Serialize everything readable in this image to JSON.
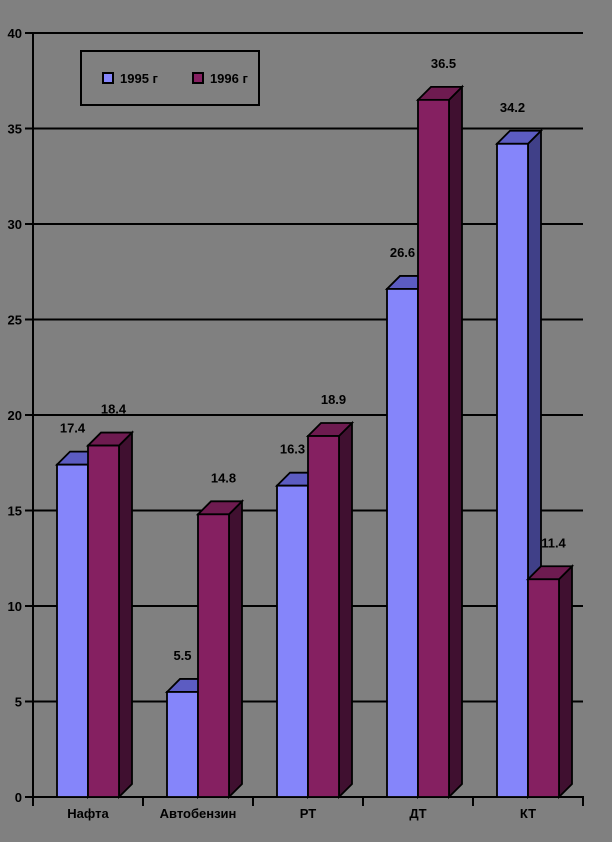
{
  "chart_data": {
    "type": "bar",
    "categories": [
      "Нафта",
      "Автобензин",
      "РТ",
      "ДТ",
      "КТ"
    ],
    "series": [
      {
        "name": "1995 г",
        "values": [
          17.4,
          5.5,
          16.3,
          26.6,
          34.2
        ],
        "labels": [
          "17.4",
          "5.5",
          "16.3",
          "26.6",
          "34.2"
        ],
        "color": "#8585FA",
        "top_color": "#5C5CC2",
        "side_color": "#404088"
      },
      {
        "name": "1996 г",
        "values": [
          18.4,
          14.8,
          18.9,
          36.5,
          11.4
        ],
        "labels": [
          "18.4",
          "14.8",
          "18.9",
          "36.5",
          "11.4"
        ],
        "color": "#852061",
        "top_color": "#6E1B50",
        "side_color": "#401030"
      }
    ],
    "ylim": [
      0,
      40
    ],
    "ytick_step": 5,
    "ytick_labels": [
      "0",
      "5",
      "10",
      "15",
      "20",
      "25",
      "30",
      "35",
      "40"
    ],
    "grid": true,
    "legend_position": "top-left",
    "background_color": "#808080",
    "axis_color": "#000000",
    "label_color": "#000000"
  },
  "legend": {
    "items": [
      {
        "label": "1995 г",
        "color": "#8585FA"
      },
      {
        "label": "1996 г",
        "color": "#852061"
      }
    ]
  }
}
